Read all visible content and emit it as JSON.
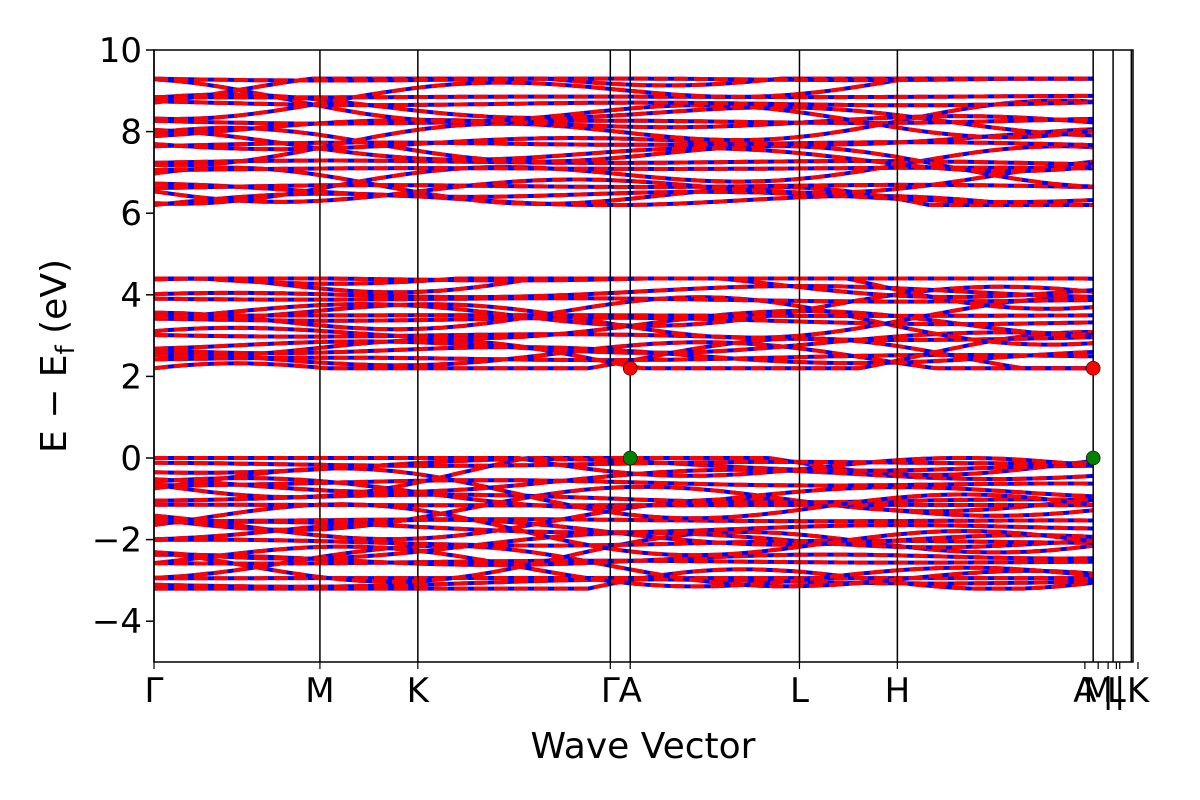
{
  "chart_data": {
    "type": "line",
    "title": "",
    "xlabel": "Wave Vector",
    "ylabel": "E − E",
    "ylabel_subscript": "f",
    "ylabel_unit": " (eV)",
    "ylim": [
      -5,
      10
    ],
    "yticks": [
      -4,
      -2,
      0,
      2,
      4,
      6,
      8,
      10
    ],
    "ytick_labels": [
      "−4",
      "−2",
      "0",
      "2",
      "4",
      "6",
      "8",
      "10"
    ],
    "xlim": [
      0,
      5.9
    ],
    "kpoints": [
      {
        "label": "Γ",
        "x": 0.0
      },
      {
        "label": "M",
        "x": 1.0
      },
      {
        "label": "K",
        "x": 1.59
      },
      {
        "label": "Γ",
        "x": 2.75
      },
      {
        "label": "A",
        "x": 2.87
      },
      {
        "label": "M",
        "x": 3.89
      },
      {
        "label": "K",
        "x": 4.48
      },
      {
        "label": "Γ",
        "x": 5.66
      },
      {
        "label": "A",
        "x": 5.66
      },
      {
        "label": "L",
        "x": 5.78
      },
      {
        "label": "M",
        "x": 5.78
      },
      {
        "label": "L",
        "x": 5.78
      },
      {
        "label": "H",
        "x": 5.89
      },
      {
        "label": "K",
        "x": 5.89
      }
    ],
    "kpath_ticks": [
      {
        "label": "Γ",
        "x": 0.0
      },
      {
        "label": "M",
        "x": 1.0
      },
      {
        "label": "K",
        "x": 1.59
      },
      {
        "label": "Γ",
        "x": 2.75
      },
      {
        "label": "A",
        "x": 2.87
      },
      {
        "label": "L",
        "x": 3.89
      },
      {
        "label": "H",
        "x": 4.48
      },
      {
        "label": "A",
        "x": 5.66
      },
      {
        "label": "M",
        "x": 5.66
      },
      {
        "label": "L",
        "x": 5.78
      },
      {
        "label": "K",
        "x": 5.89
      }
    ],
    "tick_label_display": [
      "Γ",
      "M",
      "K",
      "Γ",
      "A",
      "L",
      "H",
      "A",
      "M",
      "|",
      "L",
      "|",
      "K"
    ],
    "band_groups": [
      {
        "name": "conduction-high",
        "range": [
          6.2,
          9.3
        ],
        "count": 22
      },
      {
        "name": "conduction-low",
        "range": [
          2.2,
          4.4
        ],
        "count": 18
      },
      {
        "name": "valence",
        "range": [
          -3.2,
          0.0
        ],
        "count": 26
      }
    ],
    "spin_colors": {
      "up": "#ff0000",
      "down": "#0000ff"
    },
    "markers": [
      {
        "name": "cbm",
        "x": 2.87,
        "y": 2.2,
        "color": "#ff0000"
      },
      {
        "name": "cbm",
        "x": 5.66,
        "y": 2.2,
        "color": "#ff0000"
      },
      {
        "name": "vbm",
        "x": 2.87,
        "y": 0.0,
        "color": "#008000"
      },
      {
        "name": "vbm",
        "x": 5.66,
        "y": 0.0,
        "color": "#008000"
      }
    ],
    "grid": false
  }
}
